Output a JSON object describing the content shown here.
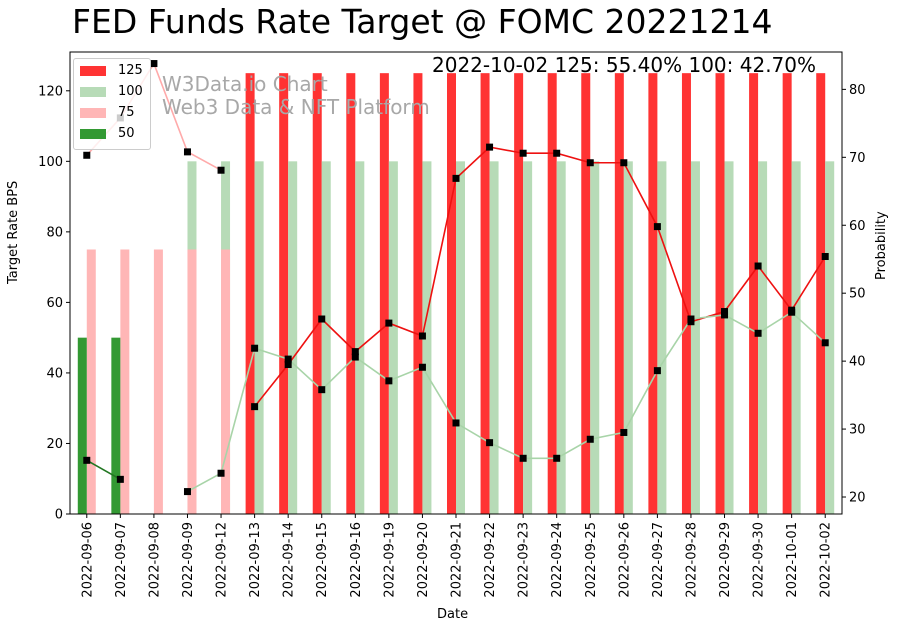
{
  "title": "FED Funds Rate Target @ FOMC 20221214",
  "annotation": "2022-10-02 125: 55.40% 100: 42.70%",
  "watermark": {
    "line1": "W3Data.io Chart",
    "line2": "Web3 Data & NFT Platform"
  },
  "chart_data": {
    "type": "bar",
    "title": "FED Funds Rate Target @ FOMC 20221214",
    "xlabel": "Date",
    "ylabel": "Target Rate BPS",
    "y2label": "Probability",
    "ylim": [
      0,
      131
    ],
    "y2lim": [
      17.5,
      85.5
    ],
    "yticks": [
      0,
      20,
      40,
      60,
      80,
      100,
      120
    ],
    "y2ticks": [
      20,
      30,
      40,
      50,
      60,
      70,
      80
    ],
    "categories": [
      "2022-09-06",
      "2022-09-07",
      "2022-09-08",
      "2022-09-09",
      "2022-09-12",
      "2022-09-13",
      "2022-09-14",
      "2022-09-15",
      "2022-09-16",
      "2022-09-19",
      "2022-09-20",
      "2022-09-21",
      "2022-09-22",
      "2022-09-23",
      "2022-09-24",
      "2022-09-25",
      "2022-09-26",
      "2022-09-27",
      "2022-09-28",
      "2022-09-29",
      "2022-09-30",
      "2022-10-01",
      "2022-10-02"
    ],
    "bar_series": [
      {
        "name": "125",
        "color": "#ff3333",
        "offset": 0,
        "values": [
          0,
          0,
          0,
          0,
          0,
          125,
          125,
          125,
          125,
          125,
          125,
          125,
          125,
          125,
          125,
          125,
          125,
          125,
          125,
          125,
          125,
          125,
          125
        ]
      },
      {
        "name": "100",
        "color": "#b7dbb7",
        "offset": 1,
        "values": [
          0,
          0,
          0,
          100,
          100,
          100,
          100,
          100,
          100,
          100,
          100,
          100,
          100,
          100,
          100,
          100,
          100,
          100,
          100,
          100,
          100,
          100,
          100
        ]
      },
      {
        "name": "75",
        "color": "#ffb6b6",
        "offset": 1,
        "values": [
          75,
          75,
          75,
          75,
          75,
          0,
          0,
          0,
          0,
          0,
          0,
          0,
          0,
          0,
          0,
          0,
          0,
          0,
          0,
          0,
          0,
          0,
          0
        ]
      },
      {
        "name": "50",
        "color": "#339933",
        "offset": 0,
        "values": [
          50,
          50,
          0,
          0,
          0,
          0,
          0,
          0,
          0,
          0,
          0,
          0,
          0,
          0,
          0,
          0,
          0,
          0,
          0,
          0,
          0,
          0,
          0
        ]
      }
    ],
    "line_series": [
      {
        "name": "125",
        "color": "#ee1111",
        "values": [
          null,
          null,
          null,
          null,
          null,
          33.3,
          39.5,
          46.2,
          41.4,
          45.6,
          43.7,
          66.9,
          71.5,
          70.6,
          70.6,
          69.2,
          69.2,
          59.8,
          45.8,
          47.3,
          54.0,
          47.5,
          55.4
        ]
      },
      {
        "name": "100",
        "color": "#a8d4a8",
        "values": [
          null,
          null,
          null,
          20.8,
          23.5,
          41.9,
          40.3,
          35.8,
          40.6,
          37.1,
          39.1,
          30.9,
          28.0,
          25.7,
          25.7,
          28.5,
          29.5,
          38.6,
          46.2,
          46.8,
          44.1,
          47.2,
          42.7
        ]
      },
      {
        "name": "75",
        "color": "#ffaaaa",
        "values": [
          70.3,
          75.8,
          83.8,
          70.8,
          68.1,
          null,
          null,
          null,
          null,
          null,
          null,
          null,
          null,
          null,
          null,
          null,
          null,
          null,
          null,
          null,
          null,
          null,
          null
        ]
      },
      {
        "name": "50",
        "color": "#227722",
        "values": [
          25.4,
          22.6,
          null,
          null,
          null,
          null,
          null,
          null,
          null,
          null,
          null,
          null,
          null,
          null,
          null,
          null,
          null,
          null,
          null,
          null,
          null,
          null,
          null
        ]
      }
    ],
    "legend": {
      "placement": "top-left",
      "entries": [
        "125",
        "100",
        "75",
        "50"
      ]
    }
  }
}
